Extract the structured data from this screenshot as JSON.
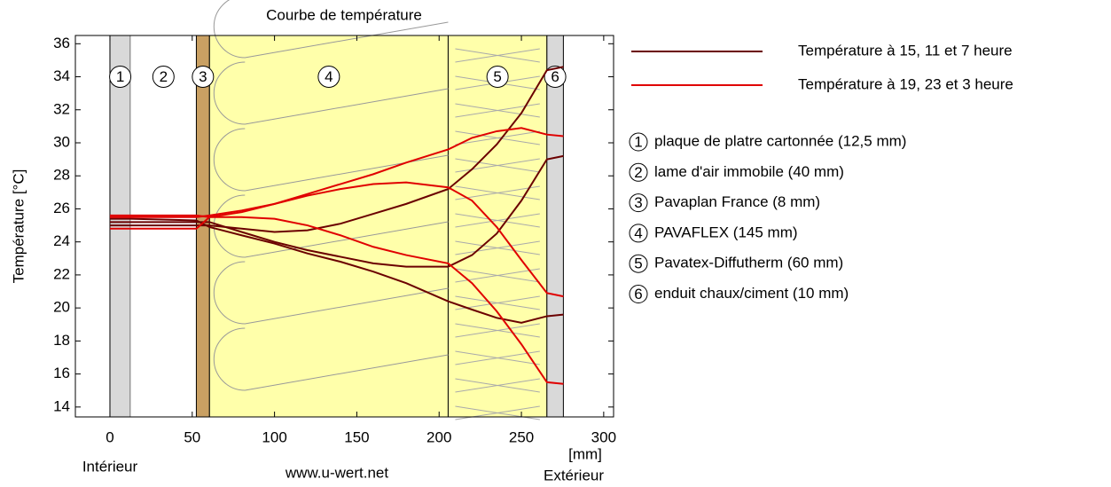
{
  "chart_data": {
    "type": "line",
    "title": "Courbe de température",
    "y_label": "Température [°C]",
    "x_unit": "[mm]",
    "inside_label": "Intérieur",
    "outside_label": "Extérieur",
    "source": "www.u-wert.net",
    "xlim": [
      -21,
      306
    ],
    "ylim": [
      13.4,
      36.5
    ],
    "xticks": [
      0,
      50,
      100,
      150,
      200,
      250,
      300
    ],
    "yticks": [
      14,
      16,
      18,
      20,
      22,
      24,
      26,
      28,
      30,
      32,
      34,
      36
    ],
    "x": [
      0,
      12.5,
      52.5,
      60.5,
      80,
      100,
      120,
      140,
      160,
      180,
      205.5,
      220,
      235,
      250,
      265.5,
      275.5
    ],
    "layers": [
      {
        "number": "1",
        "label": "plaque de platre cartonnée (12,5 mm)",
        "x": [
          0,
          12.5
        ],
        "color": "#d9d9d9"
      },
      {
        "number": "2",
        "label": "lame d'air immobile (40 mm)",
        "x": [
          12.5,
          52.5
        ],
        "color": "#ffffff"
      },
      {
        "number": "3",
        "label": "Pavaplan France (8 mm)",
        "x": [
          52.5,
          60.5
        ],
        "color": "#c9a063"
      },
      {
        "number": "4",
        "label": "PAVAFLEX (145 mm)",
        "x": [
          60.5,
          205.5
        ],
        "color": "#ffffaa"
      },
      {
        "number": "5",
        "label": "Pavatex-Diffutherm (60 mm)",
        "x": [
          205.5,
          265.5
        ],
        "color": "#ffffaa"
      },
      {
        "number": "6",
        "label": "enduit chaux/ciment (10 mm)",
        "x": [
          265.5,
          275.5
        ],
        "color": "#d9d9d9"
      }
    ],
    "series": [
      {
        "name": "Température à 15, 11 et 7 heure",
        "color": "#6b0000",
        "curves": [
          [
            25.0,
            25.0,
            25.0,
            25.0,
            24.8,
            24.6,
            24.7,
            25.1,
            25.7,
            26.3,
            27.2,
            28.4,
            29.9,
            31.8,
            34.4,
            34.6
          ],
          [
            25.2,
            25.2,
            25.2,
            25.2,
            24.6,
            24.0,
            23.5,
            23.1,
            22.7,
            22.5,
            22.5,
            23.2,
            24.5,
            26.5,
            29.0,
            29.2
          ],
          [
            25.4,
            25.4,
            25.3,
            24.9,
            24.4,
            23.9,
            23.3,
            22.8,
            22.2,
            21.5,
            20.4,
            19.9,
            19.4,
            19.1,
            19.5,
            19.6
          ]
        ]
      },
      {
        "name": "Température à 19, 23 et 3 heure",
        "color": "#e00000",
        "curves": [
          [
            25.5,
            25.5,
            25.5,
            25.6,
            25.9,
            26.3,
            26.9,
            27.5,
            28.1,
            28.8,
            29.6,
            30.3,
            30.7,
            30.9,
            30.5,
            30.4
          ],
          [
            25.6,
            25.6,
            25.6,
            25.5,
            25.8,
            26.3,
            26.8,
            27.2,
            27.5,
            27.6,
            27.3,
            26.5,
            24.9,
            22.9,
            20.9,
            20.7
          ],
          [
            24.8,
            24.8,
            24.8,
            25.5,
            25.5,
            25.4,
            25.0,
            24.4,
            23.7,
            23.2,
            22.7,
            21.5,
            19.8,
            17.8,
            15.5,
            15.4
          ]
        ]
      }
    ]
  }
}
